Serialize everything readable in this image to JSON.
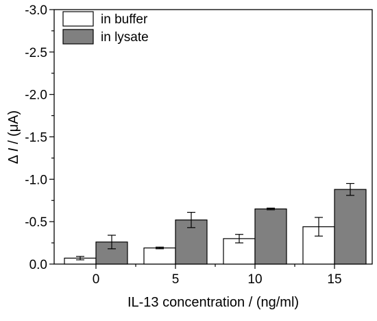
{
  "chart_data": {
    "type": "bar",
    "title": "",
    "xlabel": "IL-13 concentration / (ng/ml)",
    "ylabel": "Δ I / (μA)",
    "ylabel_parts": {
      "prefix": "Δ ",
      "italic": "I",
      "suffix": " / (μA)"
    },
    "y_axis_inverted": true,
    "ylim": [
      0.0,
      -3.0
    ],
    "yticks": [
      0.0,
      -0.5,
      -1.0,
      -1.5,
      -2.0,
      -2.5,
      -3.0
    ],
    "ytick_labels": [
      "0.0",
      "-0.5",
      "-1.0",
      "-1.5",
      "-2.0",
      "-2.5",
      "-3.0"
    ],
    "categories": [
      "0",
      "5",
      "10",
      "15"
    ],
    "grid": false,
    "legend_position": "top-left",
    "series": [
      {
        "name": "in buffer",
        "color": "#ffffff",
        "values": [
          -0.07,
          -0.19,
          -0.3,
          -0.44
        ],
        "errors": [
          0.02,
          0.01,
          0.05,
          0.11
        ]
      },
      {
        "name": "in lysate",
        "color": "#808080",
        "values": [
          -0.26,
          -0.52,
          -0.65,
          -0.88
        ],
        "errors": [
          0.08,
          0.09,
          0.01,
          0.07
        ]
      }
    ]
  }
}
